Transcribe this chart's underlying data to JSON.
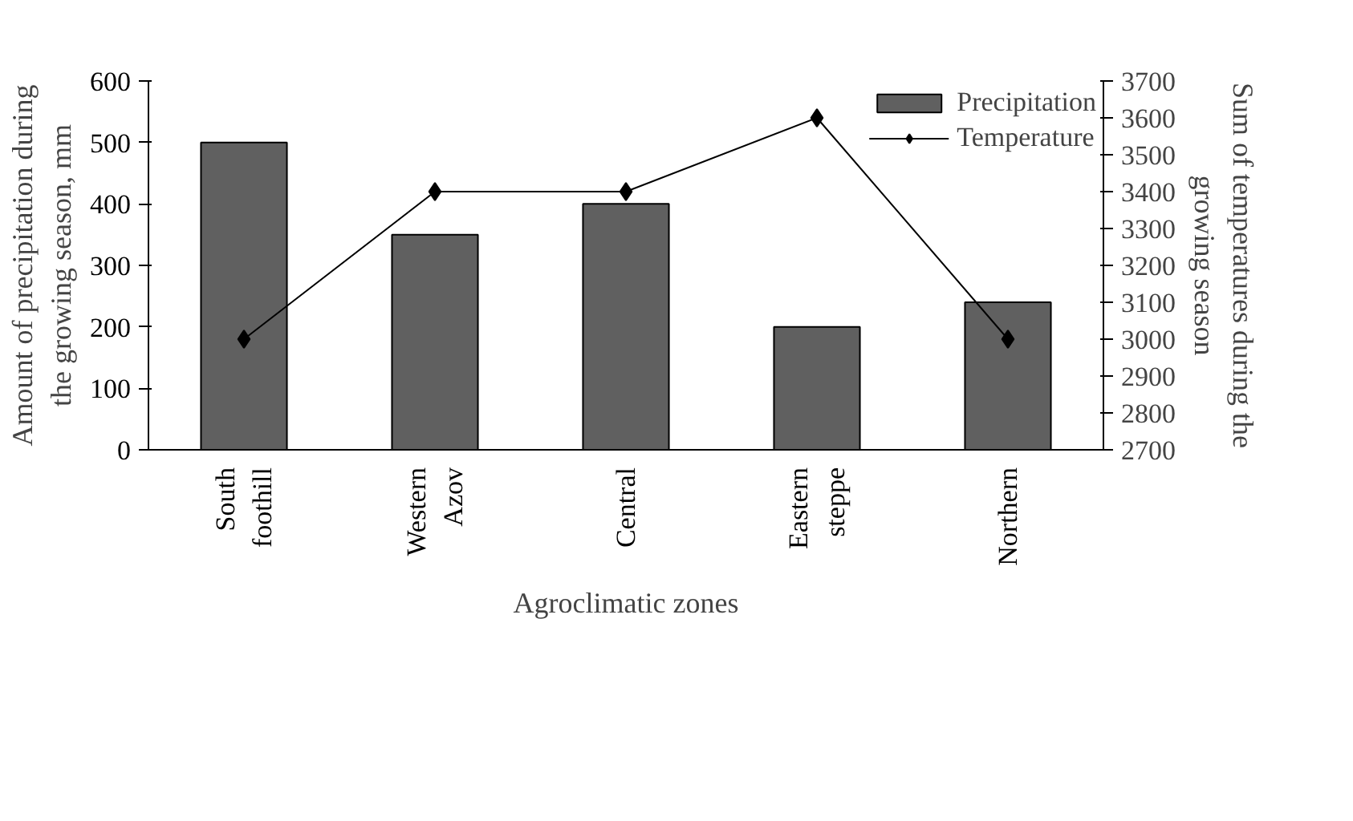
{
  "chart_data": {
    "type": "bar",
    "xlabel": "Agroclimatic zones",
    "ylabel": "Amount of precipitation during the growing season, mm",
    "y2label": "Sum of temperatures during the growing season",
    "categories": [
      "South foothill",
      "Western Azov",
      "Central",
      "Eastern steppe",
      "Northern"
    ],
    "series": [
      {
        "name": "Precipitation",
        "type": "bar",
        "color": "#606060",
        "values": [
          500,
          350,
          400,
          200,
          240
        ]
      },
      {
        "name": "Temperature",
        "type": "line",
        "axis": "y2",
        "color": "#000000",
        "marker": "diamond",
        "values": [
          3000,
          3400,
          3400,
          3600,
          3000
        ]
      }
    ],
    "ylim": [
      0,
      600
    ],
    "yticks": [
      0,
      100,
      200,
      300,
      400,
      500,
      600
    ],
    "y2lim": [
      2700,
      3700
    ],
    "y2ticks": [
      2700,
      2800,
      2900,
      3000,
      3100,
      3200,
      3300,
      3400,
      3500,
      3600,
      3700
    ],
    "grid": false,
    "legend": "top right"
  }
}
